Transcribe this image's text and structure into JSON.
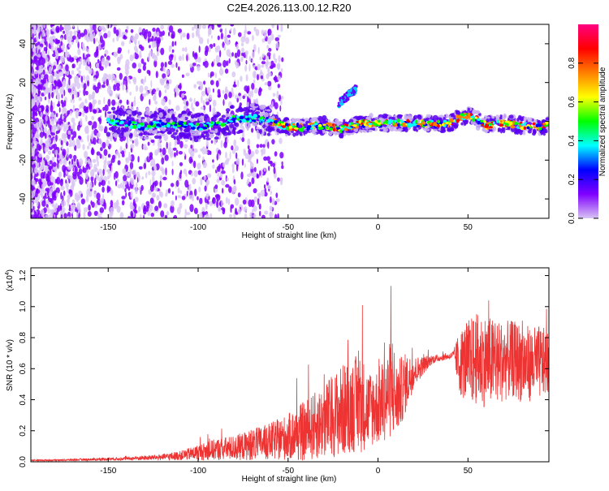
{
  "title": "C2E4.2026.113.00.12.R20",
  "chart_data": [
    {
      "type": "heatmap",
      "xlabel": "Height of straight line (km)",
      "ylabel": "Frequency (Hz)",
      "xlim": [
        -193,
        95
      ],
      "ylim": [
        -50,
        50
      ],
      "xticks": [
        -150,
        -100,
        -50,
        0,
        50
      ],
      "yticks": [
        -40,
        -20,
        0,
        20,
        40
      ],
      "track": {
        "x": [
          -150,
          -140,
          -130,
          -120,
          -110,
          -100,
          -90,
          -80,
          -70,
          -60,
          -50,
          -40,
          -30,
          -20,
          -10,
          0,
          10,
          20,
          30,
          40,
          45,
          50,
          55,
          60,
          70,
          80,
          90,
          95
        ],
        "frequency": [
          0,
          -1,
          -3,
          -1,
          -2,
          -3,
          -2,
          1,
          2,
          0,
          -3,
          -3,
          -2,
          -4,
          -1,
          -1,
          -1,
          -1,
          -1,
          -1,
          2,
          3,
          1,
          -2,
          -1,
          -2,
          -3,
          -2
        ]
      },
      "feature": {
        "x": [
          -22,
          -12
        ],
        "frequency": [
          9,
          17
        ]
      },
      "colorbar": {
        "label": "Normalized spectral amplitude",
        "ticks": [
          "0.0",
          "0.2",
          "0.4",
          "0.6",
          "0.8"
        ],
        "range": [
          0,
          1
        ],
        "colors": [
          "#d8c4f3",
          "#7f00ff",
          "#0000ff",
          "#00ffff",
          "#00ff00",
          "#ffff00",
          "#ff8000",
          "#ff0000",
          "#ff0080"
        ]
      }
    },
    {
      "type": "line",
      "xlabel": "Height of straight line (km)",
      "ylabel": "SNR (10 * v/v)",
      "multiplier_base": "(x10",
      "multiplier_exp": "4",
      "multiplier_close": ")",
      "xlim": [
        -193,
        95
      ],
      "ylim": [
        0,
        1.25
      ],
      "xticks": [
        -150,
        -100,
        -50,
        0,
        50
      ],
      "yticks": [
        "0.0",
        "0.2",
        "0.4",
        "0.6",
        "0.8",
        "1.0",
        "1.2"
      ],
      "series": [
        {
          "color": "#ee3333",
          "x": [
            -193,
            -180,
            -160,
            -140,
            -120,
            -110,
            -100,
            -90,
            -80,
            -70,
            -60,
            -50,
            -40,
            -30,
            -25,
            -20,
            -15,
            -10,
            -5,
            0,
            5,
            8,
            10,
            15,
            20,
            25,
            30,
            35,
            40,
            42,
            45,
            50,
            55,
            60,
            65,
            70,
            75,
            80,
            85,
            90,
            95
          ],
          "center": [
            0.01,
            0.01,
            0.015,
            0.02,
            0.03,
            0.04,
            0.06,
            0.08,
            0.09,
            0.11,
            0.13,
            0.16,
            0.2,
            0.26,
            0.3,
            0.33,
            0.36,
            0.38,
            0.34,
            0.36,
            0.42,
            0.5,
            0.4,
            0.5,
            0.58,
            0.62,
            0.66,
            0.67,
            0.68,
            0.69,
            0.64,
            0.64,
            0.66,
            0.65,
            0.64,
            0.65,
            0.66,
            0.64,
            0.63,
            0.64,
            0.64
          ],
          "spread": [
            0.005,
            0.005,
            0.008,
            0.01,
            0.02,
            0.03,
            0.05,
            0.07,
            0.08,
            0.1,
            0.12,
            0.15,
            0.2,
            0.24,
            0.27,
            0.3,
            0.3,
            0.33,
            0.25,
            0.25,
            0.28,
            0.35,
            0.25,
            0.2,
            0.1,
            0.06,
            0.03,
            0.02,
            0.02,
            0.03,
            0.2,
            0.28,
            0.3,
            0.3,
            0.28,
            0.26,
            0.25,
            0.26,
            0.24,
            0.24,
            0.2
          ]
        }
      ]
    }
  ]
}
